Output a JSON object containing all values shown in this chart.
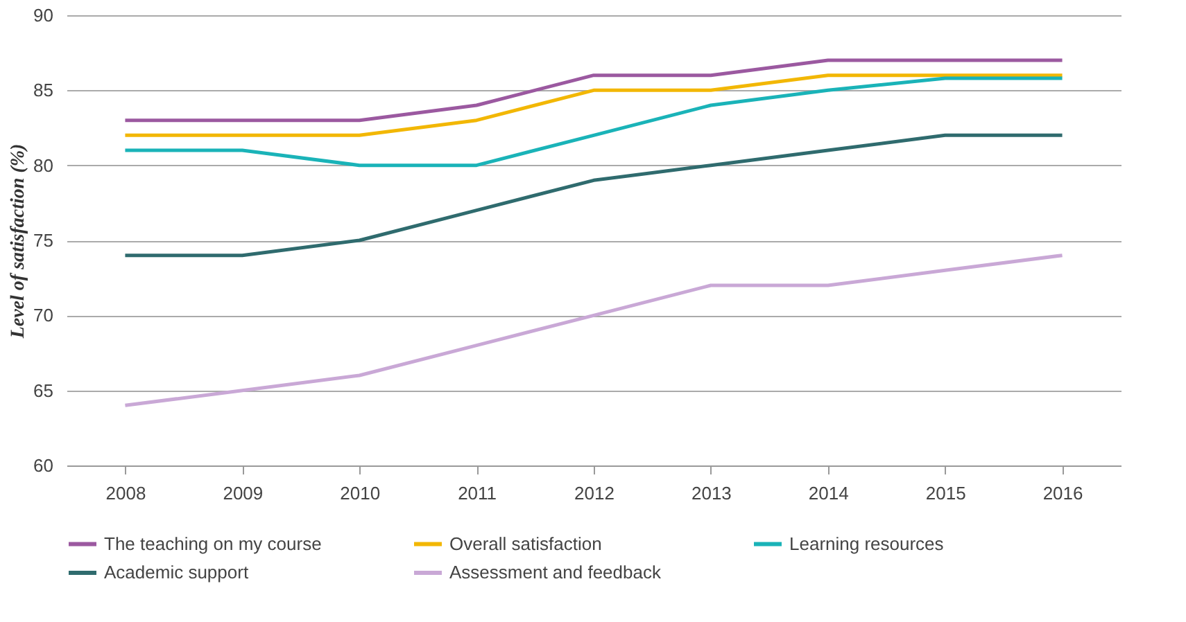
{
  "chart_data": {
    "type": "line",
    "ylabel": "Level of satisfaction (%)",
    "categories": [
      "2008",
      "2009",
      "2010",
      "2011",
      "2012",
      "2013",
      "2014",
      "2015",
      "2016"
    ],
    "series": [
      {
        "name": "The teaching on my course",
        "color": "#9b59a0",
        "values": [
          83,
          83,
          83,
          84,
          86,
          86,
          87,
          87,
          87
        ]
      },
      {
        "name": "Overall satisfaction",
        "color": "#f2b705",
        "values": [
          82,
          82,
          82,
          83,
          85,
          85,
          86,
          86,
          86
        ]
      },
      {
        "name": "Learning resources",
        "color": "#1ab3b8",
        "values": [
          81,
          81,
          80,
          80,
          82,
          84,
          85,
          85.8,
          85.8
        ]
      },
      {
        "name": "Academic support",
        "color": "#2f6b6e",
        "values": [
          74,
          74,
          75,
          77,
          79,
          80,
          81,
          82,
          82
        ]
      },
      {
        "name": "Assessment and feedback",
        "color": "#c9a8d6",
        "values": [
          64,
          65,
          66,
          68,
          70,
          72,
          72,
          73,
          74
        ]
      }
    ],
    "ylim": [
      60,
      90
    ],
    "yticks": [
      60,
      65,
      70,
      75,
      80,
      85,
      90
    ],
    "grid": "y",
    "legend": "bottom",
    "marker": "none",
    "line_style": "solid"
  }
}
